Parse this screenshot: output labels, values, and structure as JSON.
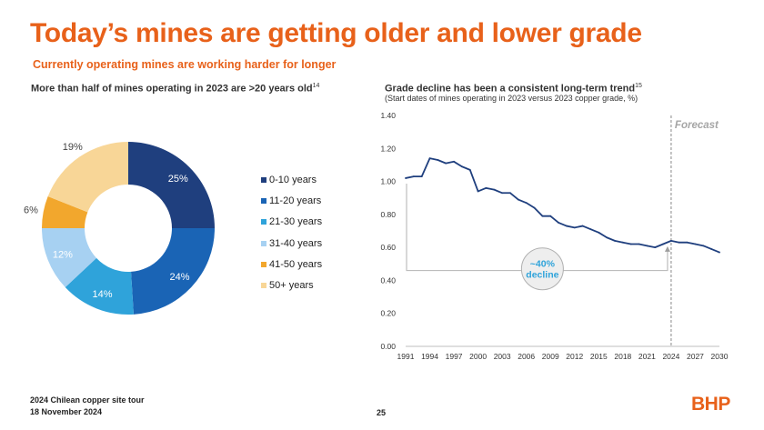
{
  "header": {
    "title": "Today’s mines are getting older and lower grade",
    "subtitle": "Currently operating mines are working harder for longer"
  },
  "left_panel": {
    "heading": "More than half of mines operating in 2023 are >20 years old",
    "heading_sup": "14"
  },
  "right_panel": {
    "heading": "Grade decline has been a consistent long-term trend",
    "heading_sup": "15",
    "subheading": "(Start dates of mines operating in 2023 versus 2023 copper grade, %)"
  },
  "chart_data": [
    {
      "type": "pie",
      "subtype": "donut",
      "categories": [
        "0-10 years",
        "11-20 years",
        "21-30 years",
        "31-40 years",
        "41-50 years",
        "50+ years"
      ],
      "values": [
        25,
        24,
        14,
        12,
        6,
        19
      ],
      "labels": [
        "25%",
        "24%",
        "14%",
        "12%",
        "6%",
        "19%"
      ],
      "colors": [
        "#1F3F7E",
        "#1A64B5",
        "#2FA3DA",
        "#A7D1F2",
        "#F2A72D",
        "#F8D697"
      ],
      "label_colors": [
        "#ffffff",
        "#ffffff",
        "#ffffff",
        "#ffffff",
        "#333333",
        "#333333"
      ],
      "legend_position": "right"
    },
    {
      "type": "line",
      "title": "Grade decline has been a consistent long-term trend",
      "x": [
        1991,
        1992,
        1993,
        1994,
        1995,
        1996,
        1997,
        1998,
        1999,
        2000,
        2001,
        2002,
        2003,
        2004,
        2005,
        2006,
        2007,
        2008,
        2009,
        2010,
        2011,
        2012,
        2013,
        2014,
        2015,
        2016,
        2017,
        2018,
        2019,
        2020,
        2021,
        2022,
        2023,
        2024,
        2025,
        2026,
        2027,
        2028,
        2029,
        2030
      ],
      "y": [
        1.02,
        1.03,
        1.03,
        1.14,
        1.13,
        1.11,
        1.12,
        1.09,
        1.07,
        0.94,
        0.96,
        0.95,
        0.93,
        0.93,
        0.89,
        0.87,
        0.84,
        0.79,
        0.79,
        0.75,
        0.73,
        0.72,
        0.73,
        0.71,
        0.69,
        0.66,
        0.64,
        0.63,
        0.62,
        0.62,
        0.61,
        0.6,
        0.62,
        0.64,
        0.63,
        0.63,
        0.62,
        0.61,
        0.59,
        0.57
      ],
      "xticks": [
        "1991",
        "1994",
        "1997",
        "2000",
        "2003",
        "2006",
        "2009",
        "2012",
        "2015",
        "2018",
        "2021",
        "2024",
        "2027",
        "2030"
      ],
      "yticks": [
        "0.00",
        "0.20",
        "0.40",
        "0.60",
        "0.80",
        "1.00",
        "1.20",
        "1.40"
      ],
      "xlim": [
        1991,
        2030
      ],
      "ylim": [
        0,
        1.4
      ],
      "line_color": "#1F3F7E",
      "forecast_start": 2024,
      "forecast_label": "Forecast",
      "annotation_lines": [
        "~40%",
        "decline"
      ],
      "accent_color": "#2FA3DA"
    }
  ],
  "footer": {
    "line1": "2024 Chilean copper site tour",
    "line2": "18 November 2024",
    "page": "25",
    "logo": "BHP"
  },
  "colors": {
    "brand_orange": "#E8611A"
  }
}
